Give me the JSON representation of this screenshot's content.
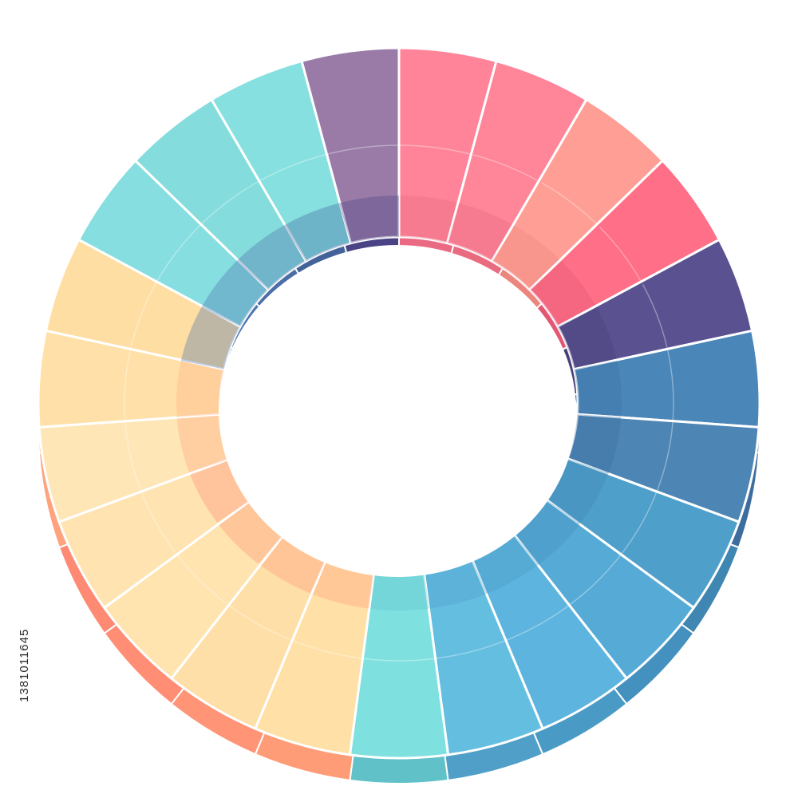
{
  "chart_data": {
    "type": "pie",
    "style": "3d-donut",
    "title": "",
    "legend": "none",
    "grid": false,
    "slices": [
      {
        "value": 1,
        "color": "#FF8499",
        "side": "#E96A82"
      },
      {
        "value": 1,
        "color": "#FF8598",
        "side": "#E86B80"
      },
      {
        "value": 1,
        "color": "#FF9E94",
        "side": "#EC857D"
      },
      {
        "value": 1,
        "color": "#FF6F87",
        "side": "#E35773"
      },
      {
        "value": 1,
        "color": "#5A5290",
        "side": "#47407A"
      },
      {
        "value": 1,
        "color": "#4A86B8",
        "side": "#3B6FA2"
      },
      {
        "value": 1,
        "color": "#4D86B4",
        "side": "#3D6C9E"
      },
      {
        "value": 1,
        "color": "#4F9FCB",
        "side": "#3F86B2"
      },
      {
        "value": 1,
        "color": "#55AAD6",
        "side": "#4490BE"
      },
      {
        "value": 1,
        "color": "#5DB4DE",
        "side": "#4A9AC6"
      },
      {
        "value": 1,
        "color": "#63BEE0",
        "side": "#4F9FC8"
      },
      {
        "value": 1,
        "color": "#7FE0E0",
        "side": "#60C2C8"
      },
      {
        "value": 1,
        "color": "#FFE0A6",
        "side": "#FF9C78"
      },
      {
        "value": 1,
        "color": "#FFDFA8",
        "side": "#FF9476"
      },
      {
        "value": 1,
        "color": "#FFE4B0",
        "side": "#FF8E74"
      },
      {
        "value": 1,
        "color": "#FFE4B2",
        "side": "#FF8A74"
      },
      {
        "value": 1,
        "color": "#FFE6B6",
        "side": "#FFA27E"
      },
      {
        "value": 1,
        "color": "#FFE0A8",
        "side": "#FFB086"
      },
      {
        "value": 1,
        "color": "#FFDEA4",
        "side": "#4570A8"
      },
      {
        "value": 1,
        "color": "#86DEE0",
        "side": "#4A74AC"
      },
      {
        "value": 1,
        "color": "#84DCDC",
        "side": "#4A6EA6"
      },
      {
        "value": 1,
        "color": "#86E0E0",
        "side": "#43629A"
      },
      {
        "value": 1,
        "color": "#9A7BA8",
        "side": "#4A4385"
      }
    ]
  },
  "side_text": "1381011645"
}
